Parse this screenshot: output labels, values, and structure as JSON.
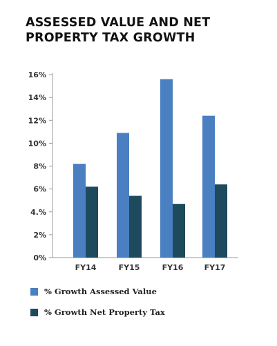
{
  "title_line1": "ASSESSED VALUE AND NET",
  "title_line2": "PROPERTY TAX GROWTH",
  "chart_data": {
    "type": "bar",
    "title": "ASSESSED VALUE AND NET PROPERTY TAX GROWTH",
    "categories": [
      "FY14",
      "FY15",
      "FY16",
      "FY17"
    ],
    "series": [
      {
        "name": "% Growth Assessed Value",
        "color": "#4a7fc1",
        "values": [
          8.2,
          10.9,
          15.6,
          12.4
        ]
      },
      {
        "name": "% Growth Net Property Tax",
        "color": "#1e4a5e",
        "values": [
          6.2,
          5.4,
          4.7,
          6.4
        ]
      }
    ],
    "yticks": [
      "0%",
      "2%",
      "4.%",
      "6%",
      "8%",
      "10%",
      "12%",
      "14%",
      "16%"
    ],
    "ylim": [
      0,
      16
    ],
    "grid": false,
    "legend_position": "bottom-left"
  }
}
